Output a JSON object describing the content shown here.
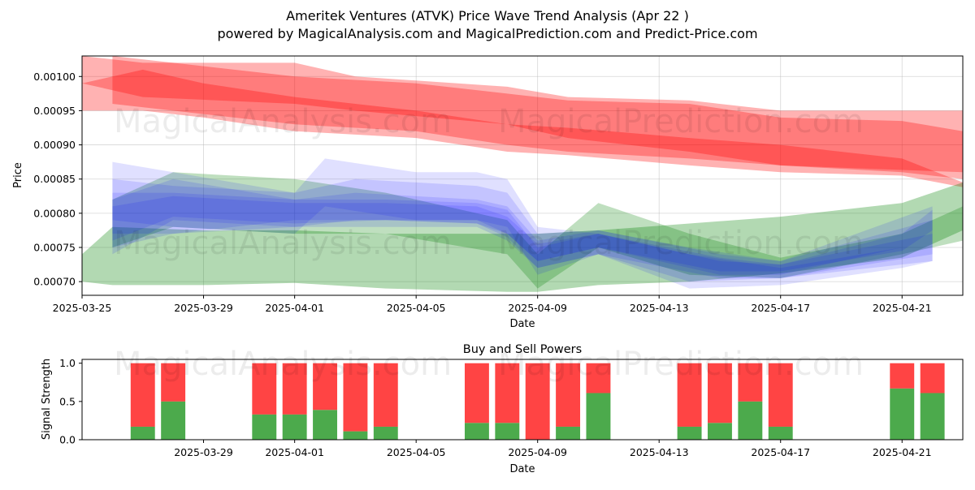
{
  "header": {
    "title": "Ameritek Ventures (ATVK) Price Wave Trend Analysis (Apr 22 )",
    "subtitle": "powered by MagicalAnalysis.com and MagicalPrediction.com and Predict-Price.com"
  },
  "watermarks": [
    "MagicalAnalysis.com",
    "MagicalPrediction.com"
  ],
  "chart_data": [
    {
      "type": "area",
      "title": "",
      "xlabel": "Date",
      "ylabel": "Price",
      "xlim": [
        "2025-03-25",
        "2025-04-23"
      ],
      "ylim": [
        0.00068,
        0.00103
      ],
      "x_ticks": [
        "2025-03-25",
        "2025-03-29",
        "2025-04-01",
        "2025-04-05",
        "2025-04-09",
        "2025-04-13",
        "2025-04-17",
        "2025-04-21"
      ],
      "y_ticks": [
        "0.00070",
        "0.00075",
        "0.00080",
        "0.00085",
        "0.00090",
        "0.00095",
        "0.00100"
      ],
      "grid": true,
      "colors": {
        "red": "#ff0000",
        "blue": "#0000ff",
        "green": "#008000"
      },
      "series": [
        {
          "color": "red",
          "opacity": 0.3,
          "x": [
            "2025-03-25",
            "2025-03-27",
            "2025-03-29",
            "2025-04-01",
            "2025-04-05",
            "2025-04-08",
            "2025-04-10",
            "2025-04-14",
            "2025-04-17",
            "2025-04-21",
            "2025-04-23"
          ],
          "upper": [
            0.00099,
            0.00101,
            0.00099,
            0.00097,
            0.00095,
            0.00093,
            0.000925,
            0.00091,
            0.0009,
            0.00088,
            0.000845
          ],
          "lower": [
            0.00095,
            0.00095,
            0.00094,
            0.00092,
            0.00091,
            0.00089,
            0.000885,
            0.00087,
            0.00086,
            0.000855,
            0.000838
          ]
        },
        {
          "color": "red",
          "opacity": 0.3,
          "x": [
            "2025-03-25",
            "2025-03-27",
            "2025-04-01",
            "2025-04-03",
            "2025-04-08",
            "2025-04-10",
            "2025-04-14",
            "2025-04-17",
            "2025-04-23"
          ],
          "upper": [
            0.00103,
            0.00102,
            0.00102,
            0.001,
            0.000985,
            0.00097,
            0.000965,
            0.00095,
            0.00095
          ],
          "lower": [
            0.00099,
            0.00097,
            0.00096,
            0.00095,
            0.00093,
            0.00091,
            0.00089,
            0.00087,
            0.00086
          ]
        },
        {
          "color": "red",
          "opacity": 0.3,
          "x": [
            "2025-03-26",
            "2025-03-28",
            "2025-04-01",
            "2025-04-05",
            "2025-04-08",
            "2025-04-10",
            "2025-04-14",
            "2025-04-17",
            "2025-04-21",
            "2025-04-23"
          ],
          "upper": [
            0.00103,
            0.00102,
            0.001,
            0.00099,
            0.000975,
            0.000965,
            0.00096,
            0.00094,
            0.000935,
            0.00092
          ],
          "lower": [
            0.00096,
            0.00095,
            0.00093,
            0.00092,
            0.0009,
            0.00089,
            0.00088,
            0.00087,
            0.00086,
            0.00085
          ]
        },
        {
          "color": "green",
          "opacity": 0.3,
          "x": [
            "2025-03-25",
            "2025-03-26",
            "2025-03-29",
            "2025-04-01",
            "2025-04-04",
            "2025-04-08",
            "2025-04-09",
            "2025-04-11",
            "2025-04-14",
            "2025-04-17",
            "2025-04-21",
            "2025-04-23"
          ],
          "upper": [
            0.00074,
            0.00078,
            0.000775,
            0.000775,
            0.00077,
            0.00077,
            0.00077,
            0.000775,
            0.000785,
            0.000795,
            0.000815,
            0.000845
          ],
          "lower": [
            0.0007,
            0.000695,
            0.000695,
            0.000698,
            0.00069,
            0.000685,
            0.000685,
            0.000695,
            0.0007,
            0.000712,
            0.000735,
            0.000775
          ]
        },
        {
          "color": "green",
          "opacity": 0.25,
          "x": [
            "2025-03-26",
            "2025-03-28",
            "2025-04-01",
            "2025-04-04",
            "2025-04-08",
            "2025-04-09",
            "2025-04-11",
            "2025-04-14",
            "2025-04-17",
            "2025-04-21",
            "2025-04-23"
          ],
          "upper": [
            0.00082,
            0.00086,
            0.00085,
            0.00083,
            0.00079,
            0.00074,
            0.000815,
            0.00077,
            0.000735,
            0.00077,
            0.00081
          ],
          "lower": [
            0.00075,
            0.00078,
            0.00077,
            0.00077,
            0.00074,
            0.00069,
            0.00075,
            0.00071,
            0.000705,
            0.00074,
            0.00076
          ]
        },
        {
          "color": "blue",
          "opacity": 0.12,
          "x": [
            "2025-03-26",
            "2025-03-28",
            "2025-04-01",
            "2025-04-02",
            "2025-04-05",
            "2025-04-07",
            "2025-04-08",
            "2025-04-09",
            "2025-04-11",
            "2025-04-14",
            "2025-04-17",
            "2025-04-21",
            "2025-04-22"
          ],
          "upper": [
            0.000875,
            0.00086,
            0.00083,
            0.00088,
            0.00086,
            0.00086,
            0.00085,
            0.00078,
            0.00077,
            0.00074,
            0.00072,
            0.00075,
            0.00076
          ],
          "lower": [
            0.00079,
            0.00078,
            0.00077,
            0.00081,
            0.00079,
            0.00079,
            0.00078,
            0.00071,
            0.00074,
            0.00069,
            0.000695,
            0.00072,
            0.00073
          ]
        },
        {
          "color": "blue",
          "opacity": 0.12,
          "x": [
            "2025-03-26",
            "2025-03-28",
            "2025-04-01",
            "2025-04-03",
            "2025-04-07",
            "2025-04-08",
            "2025-04-09",
            "2025-04-11",
            "2025-04-14",
            "2025-04-17",
            "2025-04-22"
          ],
          "upper": [
            0.00085,
            0.00084,
            0.00083,
            0.00085,
            0.00084,
            0.00083,
            0.00077,
            0.000775,
            0.00075,
            0.00073,
            0.00079
          ],
          "lower": [
            0.00077,
            0.00077,
            0.00078,
            0.00078,
            0.00078,
            0.00076,
            0.00072,
            0.00074,
            0.0007,
            0.000705,
            0.00074
          ]
        },
        {
          "color": "blue",
          "opacity": 0.12,
          "x": [
            "2025-03-26",
            "2025-03-28",
            "2025-04-01",
            "2025-04-03",
            "2025-04-07",
            "2025-04-08",
            "2025-04-09",
            "2025-04-11",
            "2025-04-15",
            "2025-04-17",
            "2025-04-22"
          ],
          "upper": [
            0.00082,
            0.00085,
            0.00082,
            0.00083,
            0.00082,
            0.00081,
            0.00076,
            0.000775,
            0.00074,
            0.00073,
            0.00081
          ],
          "lower": [
            0.00074,
            0.00079,
            0.00078,
            0.00079,
            0.00079,
            0.00077,
            0.00073,
            0.00075,
            0.00071,
            0.00071,
            0.00076
          ]
        },
        {
          "color": "blue",
          "opacity": 0.12,
          "x": [
            "2025-03-26",
            "2025-03-28",
            "2025-04-01",
            "2025-04-04",
            "2025-04-07",
            "2025-04-08",
            "2025-04-09",
            "2025-04-11",
            "2025-04-15",
            "2025-04-17",
            "2025-04-22"
          ],
          "upper": [
            0.00083,
            0.00083,
            0.00082,
            0.00082,
            0.000815,
            0.000805,
            0.00075,
            0.00077,
            0.00073,
            0.000725,
            0.00077
          ],
          "lower": [
            0.00075,
            0.00077,
            0.00079,
            0.00079,
            0.000785,
            0.000765,
            0.00072,
            0.00074,
            0.000705,
            0.000705,
            0.00073
          ]
        },
        {
          "color": "blue",
          "opacity": 0.12,
          "x": [
            "2025-03-26",
            "2025-03-28",
            "2025-04-01",
            "2025-04-04",
            "2025-04-07",
            "2025-04-08",
            "2025-04-09",
            "2025-04-11",
            "2025-04-15",
            "2025-04-17",
            "2025-04-21",
            "2025-04-22"
          ],
          "upper": [
            0.00081,
            0.000825,
            0.000815,
            0.000815,
            0.00081,
            0.000795,
            0.000755,
            0.00077,
            0.000735,
            0.000725,
            0.00077,
            0.000805
          ],
          "lower": [
            0.00076,
            0.000795,
            0.000785,
            0.00079,
            0.000785,
            0.00077,
            0.00073,
            0.00075,
            0.000715,
            0.000715,
            0.000745,
            0.000775
          ]
        }
      ]
    },
    {
      "type": "bar",
      "title": "Buy and Sell Powers",
      "xlabel": "Date",
      "ylabel": "Signal Strength",
      "ylim": [
        0,
        1.05
      ],
      "y_ticks": [
        "0.0",
        "0.5",
        "1.0"
      ],
      "x_ticks": [
        "2025-03-29",
        "2025-04-01",
        "2025-04-05",
        "2025-04-09",
        "2025-04-13",
        "2025-04-17",
        "2025-04-21"
      ],
      "xlim": [
        "2025-03-25",
        "2025-04-23"
      ],
      "colors": {
        "buy": "#4caa4c",
        "sell": "#ff4444"
      },
      "dates": [
        "2025-03-27",
        "2025-03-28",
        "2025-03-31",
        "2025-04-01",
        "2025-04-02",
        "2025-04-03",
        "2025-04-04",
        "2025-04-07",
        "2025-04-08",
        "2025-04-09",
        "2025-04-10",
        "2025-04-11",
        "2025-04-14",
        "2025-04-15",
        "2025-04-16",
        "2025-04-17",
        "2025-04-21",
        "2025-04-22"
      ],
      "buy": [
        0.17,
        0.5,
        0.33,
        0.33,
        0.39,
        0.11,
        0.17,
        0.22,
        0.22,
        0.0,
        0.17,
        0.61,
        0.17,
        0.22,
        0.5,
        0.17,
        0.67,
        0.61
      ],
      "sell": [
        0.83,
        0.5,
        0.67,
        0.67,
        0.61,
        0.89,
        0.83,
        0.78,
        0.78,
        1.0,
        0.83,
        0.39,
        0.83,
        0.78,
        0.5,
        0.83,
        0.33,
        0.39
      ]
    }
  ]
}
